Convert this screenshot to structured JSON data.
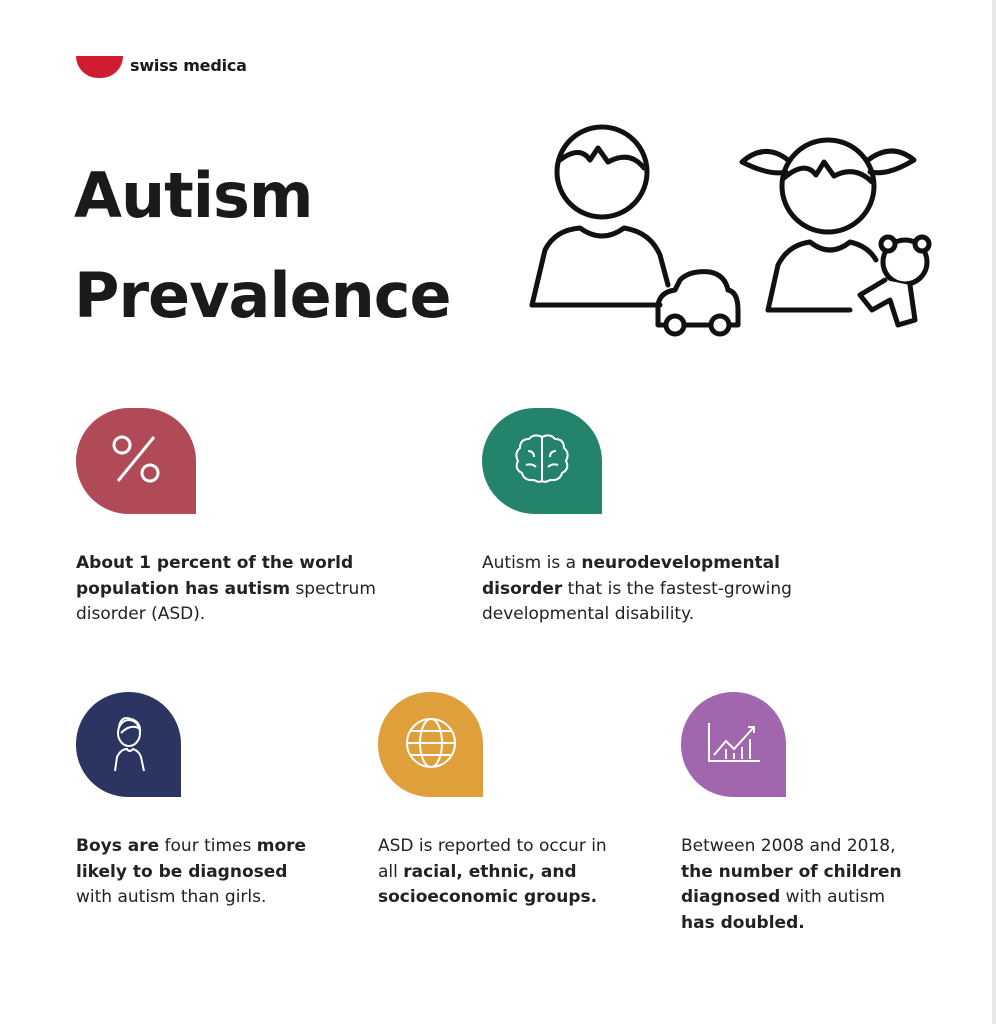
{
  "brand": {
    "name": "swiss medica",
    "color": "#d01c2f"
  },
  "title": {
    "line1": "Autism",
    "line2": "Prevalence"
  },
  "facts": [
    {
      "icon": "percent-icon",
      "color": "#b04a57",
      "parts": [
        {
          "b": "About 1 percent of the world population has autism"
        },
        {
          "t": " spectrum disorder (ASD)."
        }
      ]
    },
    {
      "icon": "brain-icon",
      "color": "#23846b",
      "parts": [
        {
          "t": "Autism is a "
        },
        {
          "b": "neurodevelopmental disorder"
        },
        {
          "t": " that is the fastest-growing developmental disability."
        }
      ]
    },
    {
      "icon": "boy-icon",
      "color": "#2c3562",
      "parts": [
        {
          "b": "Boys are"
        },
        {
          "t": " four times "
        },
        {
          "b": "more likely to be diagnosed"
        },
        {
          "t": " with autism than girls."
        }
      ]
    },
    {
      "icon": "globe-icon",
      "color": "#dfa03c",
      "parts": [
        {
          "t": "ASD is reported to occur in all "
        },
        {
          "b": "racial, ethnic, and socioeconomic groups."
        }
      ]
    },
    {
      "icon": "chart-icon",
      "color": "#a266ae",
      "parts": [
        {
          "t": "Between 2008 and 2018, "
        },
        {
          "b": "the number of children diagnosed"
        },
        {
          "t": " with autism "
        },
        {
          "b": "has doubled."
        }
      ]
    }
  ]
}
